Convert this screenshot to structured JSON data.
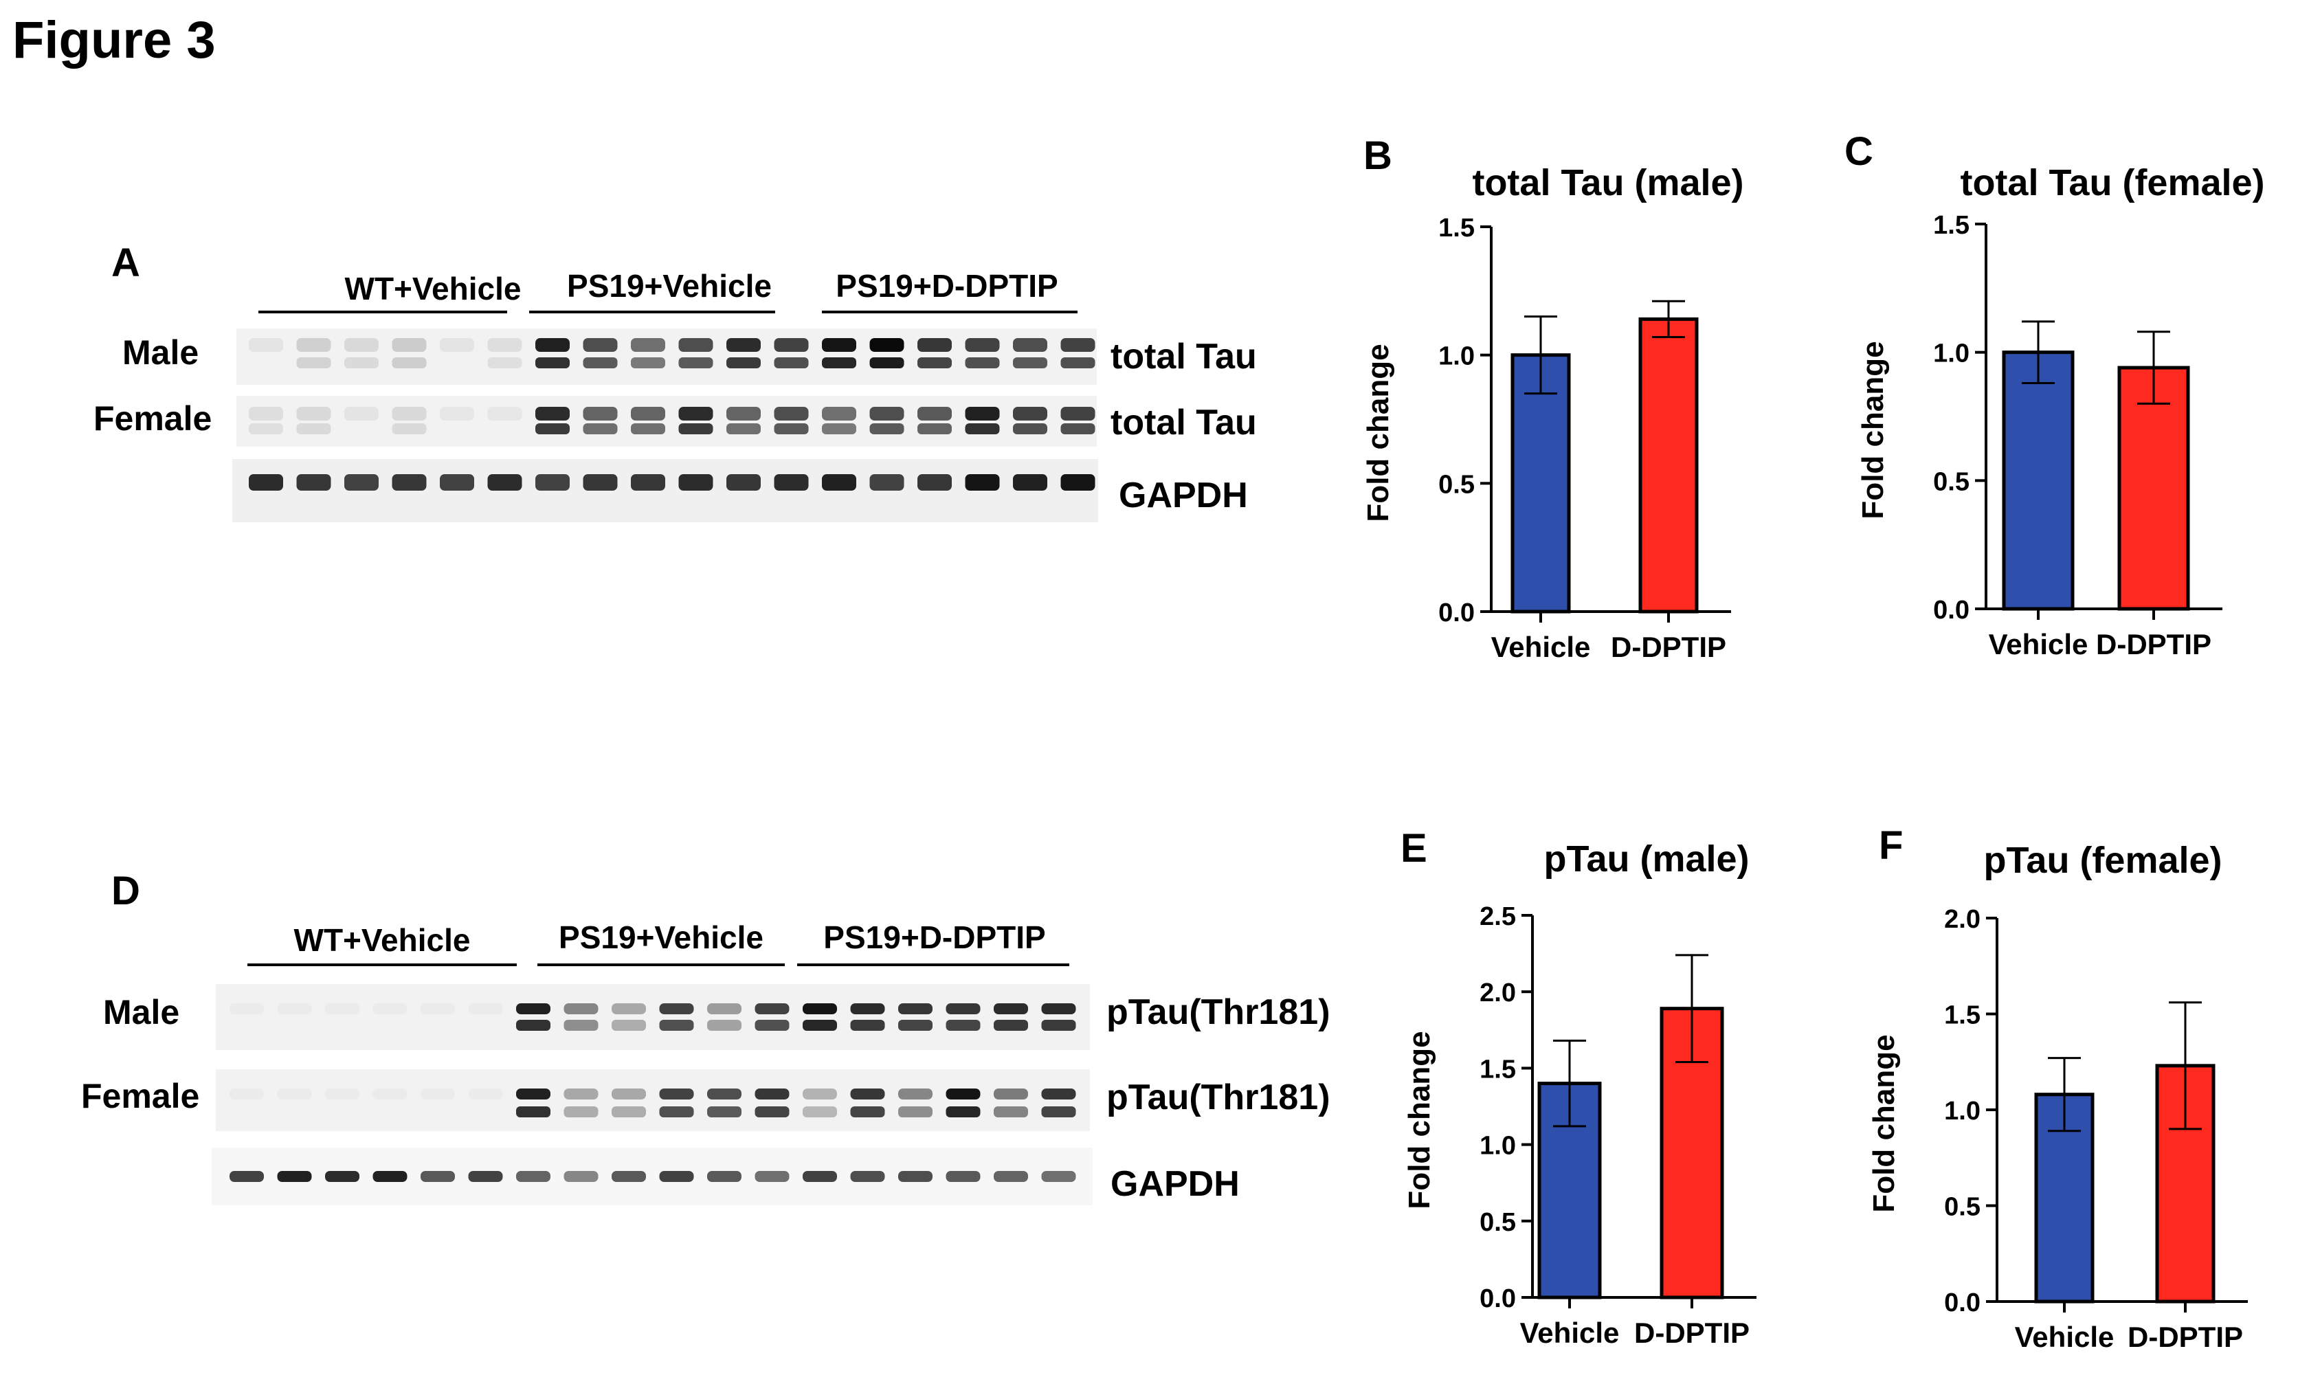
{
  "figure_title": "Figure 3",
  "blots": [
    {
      "panel": "A",
      "groups": [
        "WT+Vehicle",
        "PS19+Vehicle",
        "PS19+D-DPTIP"
      ],
      "row_labels": [
        "Male",
        "Female",
        ""
      ],
      "band_labels": [
        "total Tau",
        "total Tau",
        "GAPDH"
      ],
      "lane_intensity": [
        [
          0.03,
          0.12,
          0.08,
          0.14,
          0.03,
          0.06,
          0.9,
          0.7,
          0.55,
          0.7,
          0.85,
          0.75,
          0.95,
          1.0,
          0.8,
          0.75,
          0.7,
          0.75
        ],
        [
          0.06,
          0.08,
          0.03,
          0.08,
          0.02,
          0.02,
          0.85,
          0.6,
          0.6,
          0.85,
          0.6,
          0.7,
          0.55,
          0.7,
          0.65,
          0.9,
          0.75,
          0.75
        ],
        [
          0.85,
          0.8,
          0.75,
          0.8,
          0.75,
          0.85,
          0.75,
          0.8,
          0.8,
          0.85,
          0.8,
          0.85,
          0.9,
          0.75,
          0.8,
          0.95,
          0.9,
          0.95
        ]
      ]
    },
    {
      "panel": "D",
      "groups": [
        "WT+Vehicle",
        "PS19+Vehicle",
        "PS19+D-DPTIP"
      ],
      "row_labels": [
        "Male",
        "Female",
        ""
      ],
      "band_labels": [
        "pTau(Thr181)",
        "pTau(Thr181)",
        "GAPDH"
      ],
      "lane_intensity": [
        [
          0.0,
          0.0,
          0.0,
          0.0,
          0.0,
          0.0,
          0.9,
          0.45,
          0.3,
          0.75,
          0.35,
          0.75,
          0.95,
          0.85,
          0.8,
          0.8,
          0.85,
          0.85
        ],
        [
          0.0,
          0.0,
          0.0,
          0.0,
          0.0,
          0.0,
          0.9,
          0.3,
          0.3,
          0.75,
          0.7,
          0.8,
          0.25,
          0.8,
          0.45,
          0.95,
          0.5,
          0.8
        ],
        [
          0.75,
          0.9,
          0.85,
          0.9,
          0.65,
          0.75,
          0.6,
          0.45,
          0.65,
          0.75,
          0.65,
          0.55,
          0.75,
          0.7,
          0.7,
          0.65,
          0.6,
          0.55
        ]
      ]
    }
  ],
  "chart_data": [
    {
      "panel": "B",
      "type": "bar",
      "title": "total Tau (male)",
      "categories": [
        "Vehicle",
        "D-DPTIP"
      ],
      "values": [
        1.0,
        1.14
      ],
      "errors": [
        0.15,
        0.07
      ],
      "ylabel": "Fold change",
      "ylim": [
        0,
        1.5
      ],
      "yticks": [
        "0.0",
        "0.5",
        "1.0",
        "1.5"
      ],
      "colors": [
        "#2f4fad",
        "#ff2a1f"
      ]
    },
    {
      "panel": "C",
      "type": "bar",
      "title": "total Tau (female)",
      "categories": [
        "Vehicle",
        "D-DPTIP"
      ],
      "values": [
        1.0,
        0.94
      ],
      "errors": [
        0.12,
        0.14
      ],
      "ylabel": "Fold change",
      "ylim": [
        0,
        1.5
      ],
      "yticks": [
        "0.0",
        "0.5",
        "1.0",
        "1.5"
      ],
      "colors": [
        "#2f4fad",
        "#ff2a1f"
      ]
    },
    {
      "panel": "E",
      "type": "bar",
      "title": "pTau (male)",
      "categories": [
        "Vehicle",
        "D-DPTIP"
      ],
      "values": [
        1.4,
        1.89
      ],
      "errors": [
        0.28,
        0.35
      ],
      "ylabel": "Fold change",
      "ylim": [
        0,
        2.5
      ],
      "yticks": [
        "0.0",
        "0.5",
        "1.0",
        "1.5",
        "2.0",
        "2.5"
      ],
      "colors": [
        "#2f4fad",
        "#ff2a1f"
      ]
    },
    {
      "panel": "F",
      "type": "bar",
      "title": "pTau (female)",
      "categories": [
        "Vehicle",
        "D-DPTIP"
      ],
      "values": [
        1.08,
        1.23
      ],
      "errors": [
        0.19,
        0.33
      ],
      "ylabel": "Fold change",
      "ylim": [
        0,
        2.0
      ],
      "yticks": [
        "0.0",
        "0.5",
        "1.0",
        "1.5",
        "2.0"
      ],
      "colors": [
        "#2f4fad",
        "#ff2a1f"
      ]
    }
  ]
}
